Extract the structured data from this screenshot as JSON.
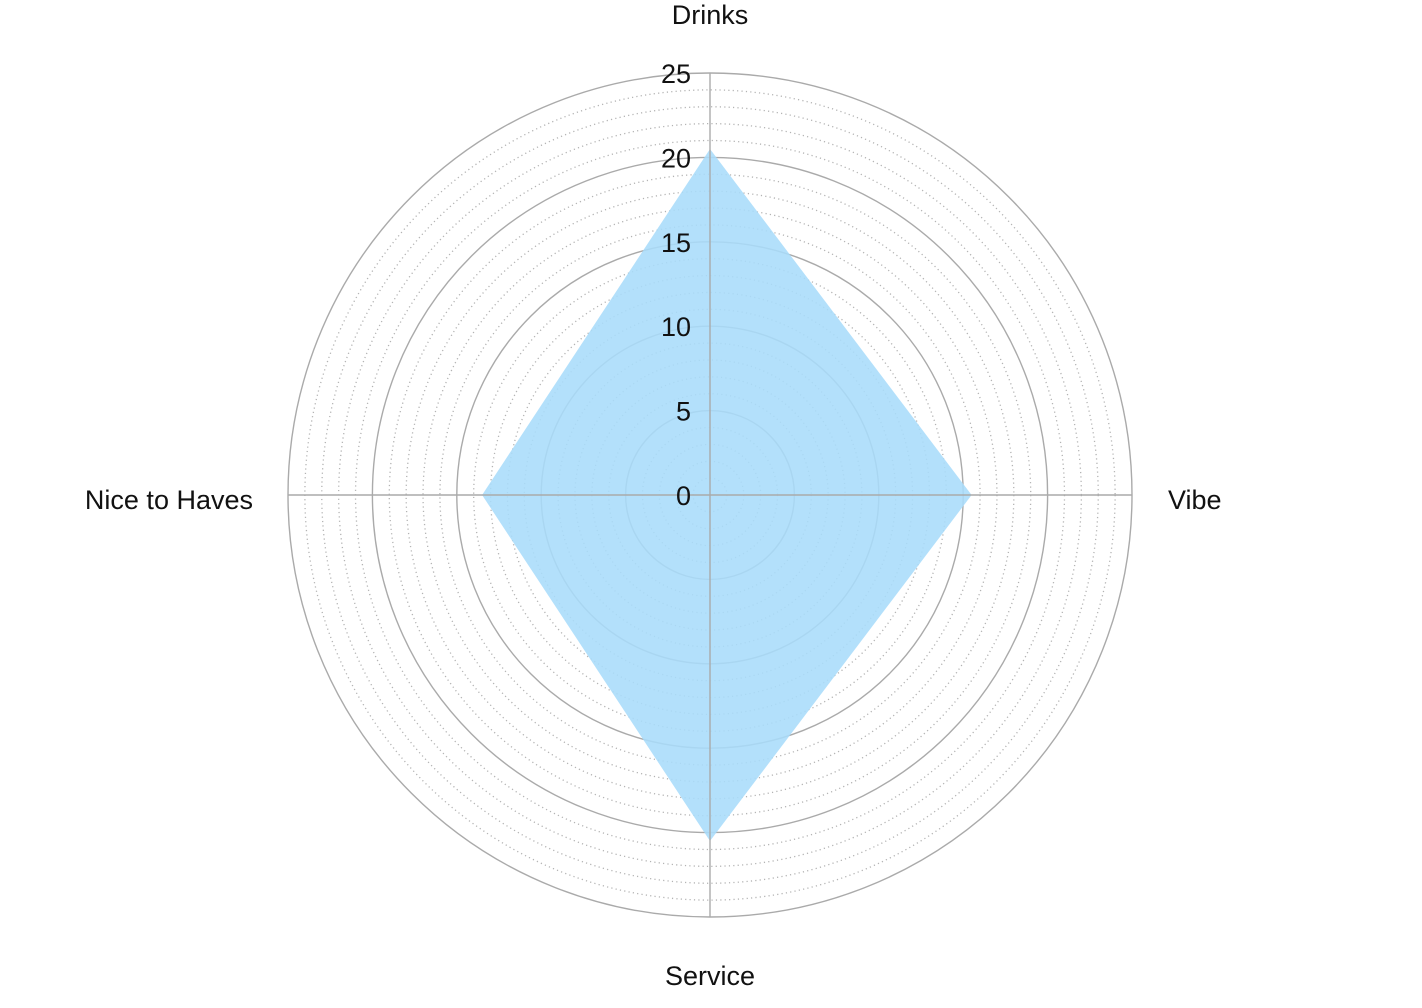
{
  "chart_data": {
    "type": "radar",
    "axes": [
      "Drinks",
      "Vibe",
      "Service",
      "Nice to Haves"
    ],
    "series": [
      {
        "values": [
          20.5,
          15.5,
          20.5,
          13.5
        ]
      }
    ],
    "r_range": [
      0,
      25
    ],
    "r_ticks": [
      "0",
      "5",
      "10",
      "15",
      "20",
      "25"
    ],
    "minor_step": 1,
    "grid": true,
    "colors": {
      "fill": "#a8dcfa",
      "major_grid": "#aaaaaa",
      "minor_grid": "#b3b3b3",
      "text": "#111111"
    }
  }
}
